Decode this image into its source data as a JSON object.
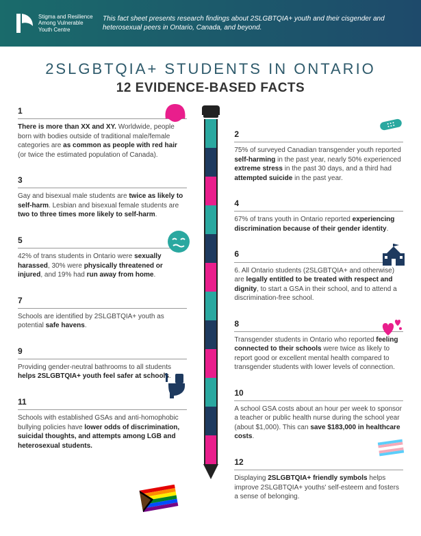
{
  "header": {
    "org_line1": "Stigma and Resilience",
    "org_line2": "Among Vulnerable",
    "org_line3": "Youth Centre",
    "intro": "This fact sheet presents research findings about 2SLGBTQIA+ youth and their cisgender and heterosexual peers in Ontario, Canada, and beyond."
  },
  "title": "2SLGBTQIA+ STUDENTS IN ONTARIO",
  "subtitle": "12 EVIDENCE-BASED FACTS",
  "colors": {
    "teal": "#2aa8a0",
    "navy": "#1e3a5f",
    "magenta": "#e91e8c",
    "header_grad_start": "#1a6b6b",
    "header_grad_end": "#1e4a6b"
  },
  "spine_segments": [
    "teal",
    "navy",
    "magenta",
    "teal",
    "navy",
    "magenta",
    "teal",
    "navy",
    "magenta",
    "teal",
    "navy",
    "magenta"
  ],
  "facts_left": [
    {
      "n": "1",
      "html": "<b>There is more than XX and XY.</b> Worldwide, people born with bodies outside of traditional male/female categories are <b>as common as people with red hair</b> (or twice the estimated population of Canada)."
    },
    {
      "n": "3",
      "html": "Gay and bisexual male students are <b>twice as likely to self-harm</b>. Lesbian and bisexual female students are <b>two to three times more likely to self-harm</b>."
    },
    {
      "n": "5",
      "html": "42% of trans students in Ontario were <b>sexually harassed</b>, 30% were <b>physically threatened or injured</b>, and 19% had <b>run away from home</b>."
    },
    {
      "n": "7",
      "html": "Schools are identified by 2SLGBTQIA+ youth as potential <b>safe havens</b>."
    },
    {
      "n": "9",
      "html": "Providing gender-neutral bathrooms to all students <b>helps 2SLGBTQIA+ youth feel safer at schools</b>."
    },
    {
      "n": "11",
      "html": "Schools with established GSAs and anti-homophobic bullying policies have <b>lower odds of discrimination, suicidal thoughts, and attempts among LGB and heterosexual students.</b>"
    }
  ],
  "facts_right": [
    {
      "n": "2",
      "html": "75% of surveyed Canadian transgender youth reported <b>self-harming</b> in the past year, nearly 50% experienced <b>extreme stress</b> in the past 30 days, and a third had <b>attempted suicide</b> in the past year."
    },
    {
      "n": "4",
      "html": "67% of trans youth in Ontario reported <b>experiencing discrimination because of their gender identity</b>."
    },
    {
      "n": "6",
      "html": "6. All Ontario students (2SLGBTQIA+ and otherwise) are <b>legally entitled to be treated with respect and dignity</b>, to start a GSA in their school, and to attend a discrimination-free school."
    },
    {
      "n": "8",
      "html": "Transgender students in Ontario who reported <b>feeling connected to their schools</b> were twice as likely to report good or excellent mental health compared to transgender students with lower levels of connection."
    },
    {
      "n": "10",
      "html": "A school GSA costs about an hour per week to sponsor a teacher or public health nurse during the school year (about $1,000). This can <b>save $183,000 in healthcare costs</b>."
    },
    {
      "n": "12",
      "html": "Displaying <b>2SLGBTQIA+ friendly symbols</b> helps improve 2SLGBTQIA+ youths' self-esteem and fosters a sense of belonging."
    }
  ]
}
